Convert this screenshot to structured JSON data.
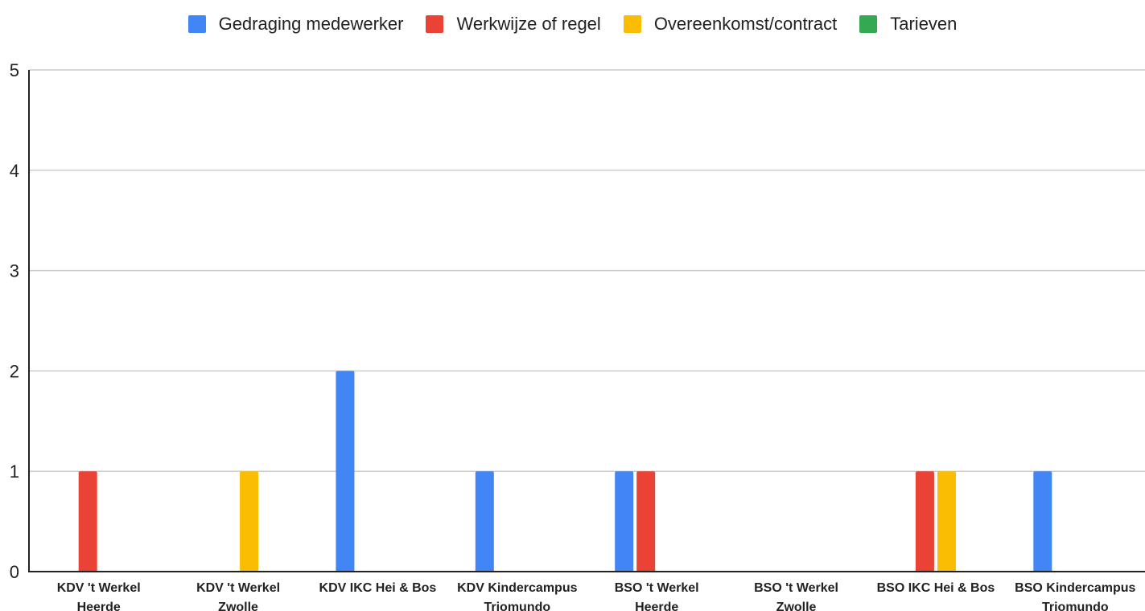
{
  "chart_data": {
    "type": "bar",
    "title": "",
    "xlabel": "",
    "ylabel": "",
    "ylim": [
      0,
      5
    ],
    "yticks": [
      0,
      1,
      2,
      3,
      4,
      5
    ],
    "grid": true,
    "legend_position": "top-center",
    "categories": [
      [
        "KDV 't Werkel",
        "Heerde"
      ],
      [
        "KDV 't Werkel",
        "Zwolle"
      ],
      [
        "KDV IKC Hei & Bos"
      ],
      [
        "KDV Kindercampus",
        "Triomundo"
      ],
      [
        "BSO 't Werkel",
        "Heerde"
      ],
      [
        "BSO 't Werkel",
        "Zwolle"
      ],
      [
        "BSO IKC Hei & Bos"
      ],
      [
        "BSO Kindercampus",
        "Triomundo"
      ]
    ],
    "series": [
      {
        "name": "Gedraging medewerker",
        "color": "#4285F4",
        "values": [
          0,
          0,
          2,
          1,
          1,
          0,
          0,
          1
        ]
      },
      {
        "name": "Werkwijze of regel",
        "color": "#EA4335",
        "values": [
          1,
          0,
          0,
          0,
          1,
          0,
          1,
          0
        ]
      },
      {
        "name": "Overeenkomst/contract",
        "color": "#FBBC04",
        "values": [
          0,
          1,
          0,
          0,
          0,
          0,
          1,
          0
        ]
      },
      {
        "name": "Tarieven",
        "color": "#34A853",
        "values": [
          0,
          0,
          0,
          0,
          0,
          0,
          0,
          0
        ]
      }
    ]
  }
}
